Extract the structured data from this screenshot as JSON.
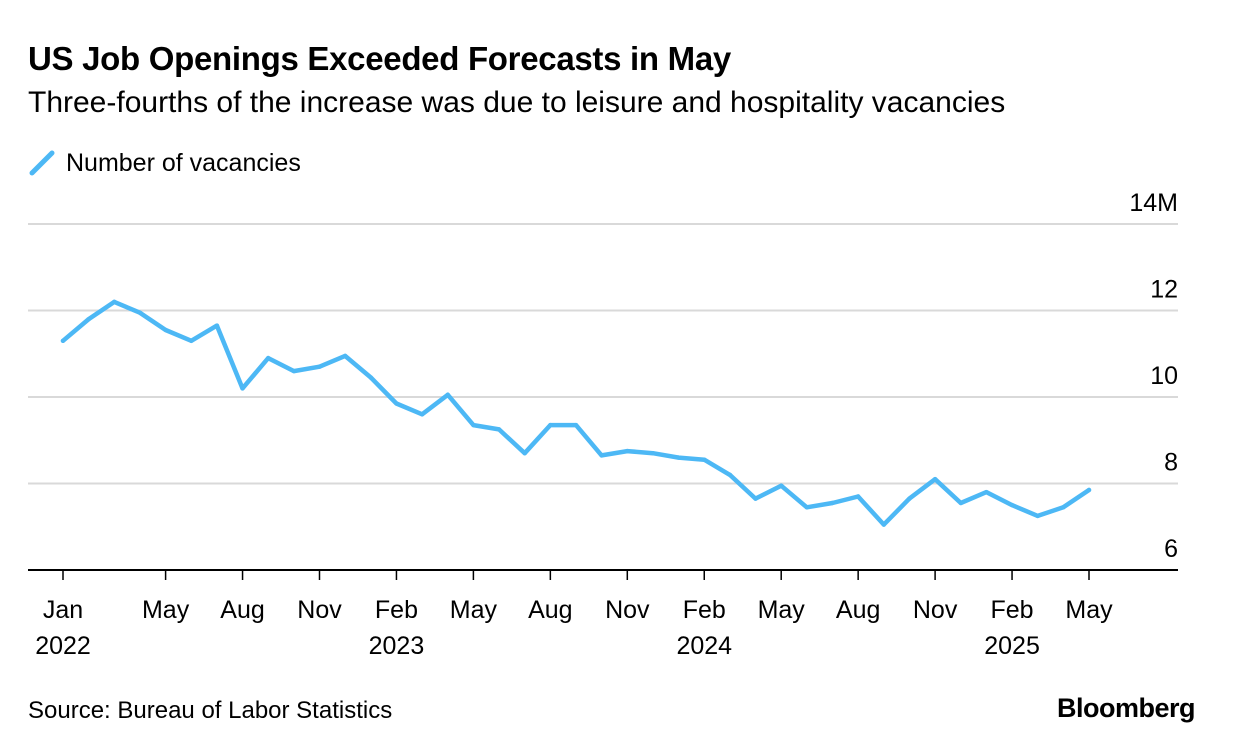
{
  "colors": {
    "line": "#4db8f5",
    "grid": "#d9d9d9",
    "axis": "#000000",
    "text": "#000000"
  },
  "chart_data": {
    "type": "line",
    "title": "US Job Openings Exceeded Forecasts in May",
    "subtitle": "Three-fourths of the increase was due to leisure and hospitality vacancies",
    "legend": [
      "Number of vacancies"
    ],
    "legend_position": "top-left",
    "unit_suffix": "M",
    "ylim": [
      6,
      14
    ],
    "yticks": [
      6,
      8,
      10,
      12,
      14
    ],
    "ytick_labels": [
      "6",
      "8",
      "10",
      "12",
      "14M"
    ],
    "grid": true,
    "xticks": [
      {
        "index": 0,
        "month": "Jan",
        "year": "2022"
      },
      {
        "index": 4,
        "month": "May",
        "year": ""
      },
      {
        "index": 7,
        "month": "Aug",
        "year": ""
      },
      {
        "index": 10,
        "month": "Nov",
        "year": ""
      },
      {
        "index": 13,
        "month": "Feb",
        "year": "2023"
      },
      {
        "index": 16,
        "month": "May",
        "year": ""
      },
      {
        "index": 19,
        "month": "Aug",
        "year": ""
      },
      {
        "index": 22,
        "month": "Nov",
        "year": ""
      },
      {
        "index": 25,
        "month": "Feb",
        "year": "2024"
      },
      {
        "index": 28,
        "month": "May",
        "year": ""
      },
      {
        "index": 31,
        "month": "Aug",
        "year": ""
      },
      {
        "index": 34,
        "month": "Nov",
        "year": ""
      },
      {
        "index": 37,
        "month": "Feb",
        "year": "2025"
      },
      {
        "index": 40,
        "month": "May",
        "year": ""
      }
    ],
    "series": [
      {
        "name": "Number of vacancies",
        "start": "Jan 2022",
        "values": [
          11.3,
          11.8,
          12.2,
          11.95,
          11.55,
          11.3,
          11.65,
          10.2,
          10.9,
          10.6,
          10.7,
          10.95,
          10.45,
          9.85,
          9.6,
          10.05,
          9.35,
          9.25,
          8.7,
          9.35,
          9.35,
          8.65,
          8.75,
          8.7,
          8.6,
          8.55,
          8.2,
          7.65,
          7.95,
          7.45,
          7.55,
          7.7,
          7.05,
          7.65,
          8.1,
          7.55,
          7.8,
          7.5,
          7.25,
          7.45,
          7.85
        ]
      }
    ]
  },
  "footer": {
    "source": "Source: Bureau of Labor Statistics",
    "brand": "Bloomberg"
  }
}
